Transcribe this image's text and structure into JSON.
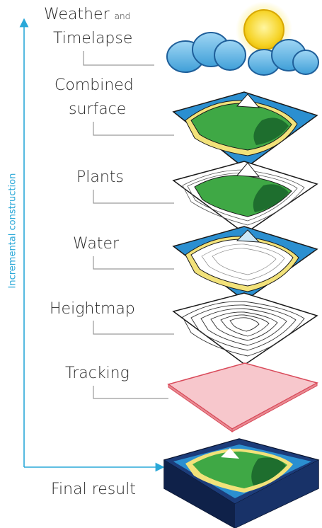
{
  "axis": {
    "label": "Incremental construction"
  },
  "layers": [
    {
      "id": "weather",
      "line1": "Weather",
      "line1_suffix": "and",
      "line2": "Timelapse"
    },
    {
      "id": "combined",
      "line1": "Combined",
      "line2": "surface"
    },
    {
      "id": "plants",
      "line1": "Plants"
    },
    {
      "id": "water",
      "line1": "Water"
    },
    {
      "id": "heightmap",
      "line1": "Heightmap"
    },
    {
      "id": "tracking",
      "line1": "Tracking"
    },
    {
      "id": "final",
      "line1": "Final result"
    }
  ],
  "colors": {
    "axis": "#2aa8d8",
    "water": "#2b8fd0",
    "sand": "#f2e27a",
    "grass": "#3fa845",
    "forest": "#1e6e2e",
    "outline": "#1a1a1a",
    "tracking": "#e88a92",
    "box": "#132a5c",
    "cloud": "#6fbde8",
    "sun": "#f5d020"
  }
}
